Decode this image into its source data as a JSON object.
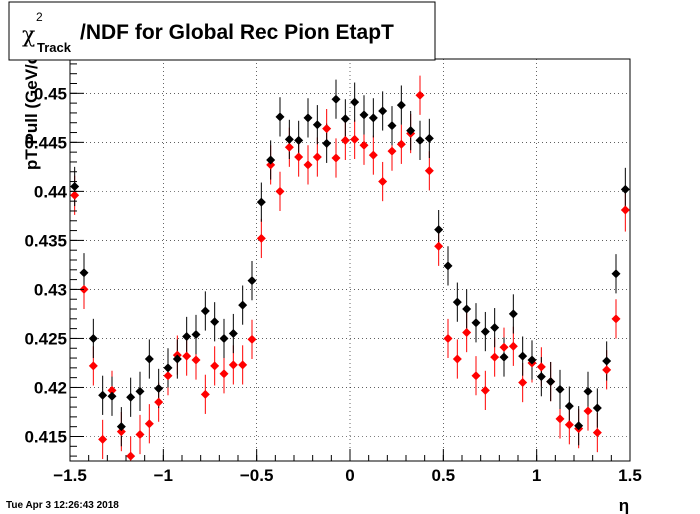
{
  "chart_data": {
    "type": "scatter",
    "title": {
      "symbol": "χ",
      "superscript": "2",
      "subscript": "Track",
      "text": "/NDF for Global Rec Pion EtapT"
    },
    "xlabel": "η",
    "ylabel": "pT Pull (GeV/c)",
    "xlim": [
      -1.5,
      1.5
    ],
    "ylim": [
      0.4125,
      0.4535
    ],
    "x_ticks": [
      -1.5,
      -1,
      -0.5,
      0,
      0.5,
      1,
      1.5
    ],
    "x_tick_labels": [
      "−1.5",
      "−1",
      "−0.5",
      "0",
      "0.5",
      "1",
      "1.5"
    ],
    "y_ticks": [
      0.415,
      0.42,
      0.425,
      0.43,
      0.435,
      0.44,
      0.445,
      0.45
    ],
    "y_tick_labels": [
      "0.415",
      "0.42",
      "0.425",
      "0.43",
      "0.435",
      "0.44",
      "0.445",
      "0.45"
    ],
    "grid": true,
    "x": [
      -1.475,
      -1.425,
      -1.375,
      -1.325,
      -1.275,
      -1.225,
      -1.175,
      -1.125,
      -1.075,
      -1.025,
      -0.975,
      -0.925,
      -0.875,
      -0.825,
      -0.775,
      -0.725,
      -0.675,
      -0.625,
      -0.575,
      -0.525,
      -0.475,
      -0.425,
      -0.375,
      -0.325,
      -0.275,
      -0.225,
      -0.175,
      -0.125,
      -0.075,
      -0.025,
      0.025,
      0.075,
      0.125,
      0.175,
      0.225,
      0.275,
      0.325,
      0.375,
      0.425,
      0.475,
      0.525,
      0.575,
      0.625,
      0.675,
      0.725,
      0.775,
      0.825,
      0.875,
      0.925,
      0.975,
      1.025,
      1.075,
      1.125,
      1.175,
      1.225,
      1.275,
      1.325,
      1.375,
      1.425,
      1.475
    ],
    "series": [
      {
        "color": "#000000",
        "y": [
          0.4405,
          0.4317,
          0.425,
          0.4192,
          0.4191,
          0.416,
          0.419,
          0.4196,
          0.4229,
          0.4199,
          0.422,
          0.4229,
          0.4252,
          0.4254,
          0.4278,
          0.4267,
          0.425,
          0.4255,
          0.4284,
          0.4309,
          0.4389,
          0.4432,
          0.4476,
          0.4453,
          0.4452,
          0.4475,
          0.4468,
          0.4449,
          0.4494,
          0.4474,
          0.4491,
          0.4478,
          0.4475,
          0.4482,
          0.4467,
          0.4488,
          0.4462,
          0.4452,
          0.4454,
          0.4361,
          0.4324,
          0.4287,
          0.428,
          0.4266,
          0.4257,
          0.4261,
          0.4231,
          0.4275,
          0.4232,
          0.4228,
          0.4211,
          0.4206,
          0.4198,
          0.4181,
          0.4161,
          0.4196,
          0.4179,
          0.4227,
          0.4316,
          0.4402
        ],
        "err": [
          0.002,
          0.002,
          0.002,
          0.002,
          0.002,
          0.002,
          0.002,
          0.002,
          0.002,
          0.002,
          0.002,
          0.002,
          0.002,
          0.002,
          0.002,
          0.002,
          0.002,
          0.002,
          0.002,
          0.002,
          0.002,
          0.002,
          0.002,
          0.002,
          0.002,
          0.002,
          0.002,
          0.002,
          0.002,
          0.002,
          0.002,
          0.002,
          0.002,
          0.002,
          0.002,
          0.002,
          0.002,
          0.002,
          0.002,
          0.002,
          0.002,
          0.002,
          0.002,
          0.002,
          0.002,
          0.002,
          0.002,
          0.002,
          0.002,
          0.002,
          0.002,
          0.002,
          0.002,
          0.002,
          0.002,
          0.002,
          0.002,
          0.002,
          0.002,
          0.0022
        ]
      },
      {
        "color": "#ff0000",
        "y": [
          0.4396,
          0.43,
          0.4222,
          0.4147,
          0.4197,
          0.4155,
          0.413,
          0.4152,
          0.4163,
          0.4185,
          0.4212,
          0.4233,
          0.4232,
          0.4228,
          0.4193,
          0.4222,
          0.4214,
          0.4223,
          0.4223,
          0.4249,
          0.4352,
          0.4427,
          0.44,
          0.4445,
          0.4435,
          0.4427,
          0.4435,
          0.4464,
          0.4434,
          0.4452,
          0.4453,
          0.4447,
          0.4437,
          0.441,
          0.4441,
          0.4448,
          0.4459,
          0.4498,
          0.4421,
          0.4344,
          0.425,
          0.4229,
          0.4256,
          0.4212,
          0.4197,
          0.4231,
          0.4241,
          0.4242,
          0.4205,
          0.4225,
          0.4221,
          0.4206,
          0.4168,
          0.4162,
          0.4158,
          0.4176,
          0.4154,
          0.4218,
          0.427,
          0.4381
        ],
        "err": [
          0.002,
          0.002,
          0.002,
          0.002,
          0.002,
          0.002,
          0.002,
          0.002,
          0.002,
          0.002,
          0.002,
          0.002,
          0.002,
          0.002,
          0.002,
          0.002,
          0.002,
          0.002,
          0.002,
          0.002,
          0.002,
          0.002,
          0.002,
          0.002,
          0.002,
          0.002,
          0.002,
          0.002,
          0.002,
          0.002,
          0.002,
          0.002,
          0.002,
          0.002,
          0.002,
          0.002,
          0.002,
          0.002,
          0.002,
          0.002,
          0.002,
          0.002,
          0.002,
          0.002,
          0.002,
          0.002,
          0.002,
          0.002,
          0.002,
          0.002,
          0.002,
          0.002,
          0.002,
          0.002,
          0.002,
          0.002,
          0.002,
          0.002,
          0.002,
          0.0022
        ]
      }
    ]
  },
  "timestamp": "Tue Apr  3 12:26:43 2018"
}
